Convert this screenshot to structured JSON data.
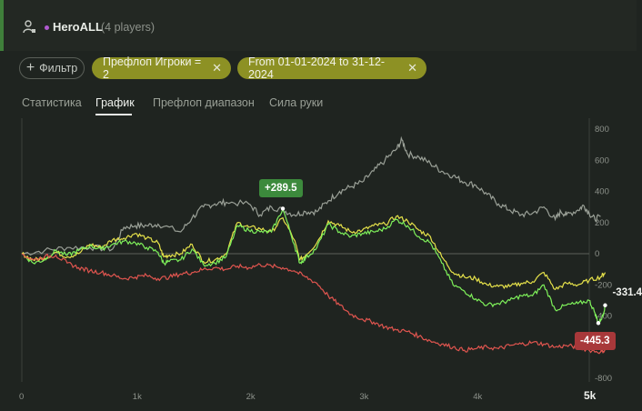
{
  "header": {
    "hero_name": "HeroALL",
    "players_text": "(4 players)"
  },
  "filters": {
    "add_filter_label": "Фильтр",
    "chips": [
      {
        "label": "Префлоп Игроки = 2"
      },
      {
        "label": "From 01-01-2024 to 31-12-2024"
      }
    ]
  },
  "tabs": [
    {
      "label": "Статистика"
    },
    {
      "label": "График"
    },
    {
      "label": "Префлоп диапазон"
    },
    {
      "label": "Сила руки"
    }
  ],
  "active_tab": "График",
  "colors": {
    "gray_series": "#9aa097",
    "yellow_series": "#e6e24a",
    "green_series": "#7ef05a",
    "red_series": "#e0554f",
    "positive_callout": "#3c8a3c",
    "negative_callout": "#a8383a",
    "chip_bg": "#8d9124"
  },
  "chart_data": {
    "type": "line",
    "x_ticks": [
      "0",
      "1k",
      "2k",
      "3k",
      "4k",
      "5k"
    ],
    "y_ticks": [
      "800",
      "600",
      "400",
      "200",
      "0",
      "-200",
      "-400",
      "-600",
      "-800"
    ],
    "xlim": [
      0,
      5000
    ],
    "ylim": [
      -800,
      800
    ],
    "grid": false,
    "series": [
      {
        "color": "#9aa097",
        "points": [
          [
            0,
            0
          ],
          [
            200,
            20
          ],
          [
            400,
            40
          ],
          [
            600,
            40
          ],
          [
            800,
            30
          ],
          [
            900,
            170
          ],
          [
            1000,
            180
          ],
          [
            1100,
            180
          ],
          [
            1200,
            190
          ],
          [
            1400,
            140
          ],
          [
            1500,
            230
          ],
          [
            1600,
            300
          ],
          [
            1700,
            320
          ],
          [
            1800,
            330
          ],
          [
            2000,
            320
          ],
          [
            2100,
            250
          ],
          [
            2200,
            300
          ],
          [
            2300,
            280
          ],
          [
            2400,
            250
          ],
          [
            2500,
            270
          ],
          [
            2600,
            270
          ],
          [
            2700,
            340
          ],
          [
            2800,
            400
          ],
          [
            2900,
            430
          ],
          [
            3000,
            460
          ],
          [
            3100,
            530
          ],
          [
            3200,
            600
          ],
          [
            3300,
            670
          ],
          [
            3350,
            730
          ],
          [
            3400,
            640
          ],
          [
            3500,
            620
          ],
          [
            3600,
            580
          ],
          [
            3700,
            530
          ],
          [
            3800,
            500
          ],
          [
            3900,
            460
          ],
          [
            4000,
            440
          ],
          [
            4100,
            380
          ],
          [
            4200,
            320
          ],
          [
            4300,
            280
          ],
          [
            4400,
            250
          ],
          [
            4500,
            260
          ],
          [
            4600,
            300
          ],
          [
            4700,
            220
          ],
          [
            4750,
            270
          ],
          [
            4800,
            250
          ],
          [
            4900,
            280
          ],
          [
            4950,
            310
          ],
          [
            5000,
            260
          ],
          [
            5050,
            220
          ],
          [
            5100,
            240
          ]
        ]
      },
      {
        "color": "#e6e24a",
        "points": [
          [
            0,
            0
          ],
          [
            100,
            -40
          ],
          [
            200,
            -30
          ],
          [
            300,
            10
          ],
          [
            400,
            -20
          ],
          [
            500,
            0
          ],
          [
            600,
            60
          ],
          [
            700,
            40
          ],
          [
            800,
            90
          ],
          [
            900,
            100
          ],
          [
            1000,
            130
          ],
          [
            1100,
            100
          ],
          [
            1200,
            70
          ],
          [
            1250,
            -20
          ],
          [
            1300,
            -10
          ],
          [
            1400,
            0
          ],
          [
            1500,
            60
          ],
          [
            1600,
            -50
          ],
          [
            1700,
            -40
          ],
          [
            1800,
            0
          ],
          [
            1900,
            200
          ],
          [
            2000,
            170
          ],
          [
            2100,
            160
          ],
          [
            2200,
            140
          ],
          [
            2300,
            230
          ],
          [
            2400,
            90
          ],
          [
            2450,
            -40
          ],
          [
            2500,
            -10
          ],
          [
            2600,
            70
          ],
          [
            2700,
            210
          ],
          [
            2800,
            180
          ],
          [
            2900,
            140
          ],
          [
            3000,
            150
          ],
          [
            3100,
            180
          ],
          [
            3200,
            190
          ],
          [
            3300,
            240
          ],
          [
            3400,
            210
          ],
          [
            3500,
            150
          ],
          [
            3600,
            110
          ],
          [
            3700,
            -20
          ],
          [
            3800,
            -120
          ],
          [
            3900,
            -150
          ],
          [
            4000,
            -160
          ],
          [
            4100,
            -200
          ],
          [
            4200,
            -210
          ],
          [
            4300,
            -210
          ],
          [
            4400,
            -190
          ],
          [
            4500,
            -180
          ],
          [
            4600,
            -120
          ],
          [
            4700,
            -230
          ],
          [
            4800,
            -190
          ],
          [
            4900,
            -200
          ],
          [
            5000,
            -170
          ],
          [
            5100,
            -150
          ],
          [
            5140,
            -120
          ]
        ]
      },
      {
        "color": "#7ef05a",
        "points": [
          [
            0,
            0
          ],
          [
            100,
            -60
          ],
          [
            200,
            -40
          ],
          [
            300,
            20
          ],
          [
            400,
            -10
          ],
          [
            500,
            20
          ],
          [
            600,
            50
          ],
          [
            700,
            30
          ],
          [
            800,
            60
          ],
          [
            900,
            80
          ],
          [
            1000,
            70
          ],
          [
            1100,
            40
          ],
          [
            1200,
            10
          ],
          [
            1250,
            -60
          ],
          [
            1300,
            -50
          ],
          [
            1400,
            -40
          ],
          [
            1500,
            30
          ],
          [
            1600,
            -70
          ],
          [
            1700,
            -60
          ],
          [
            1800,
            -20
          ],
          [
            1900,
            180
          ],
          [
            2000,
            150
          ],
          [
            2100,
            140
          ],
          [
            2200,
            140
          ],
          [
            2300,
            289.5
          ],
          [
            2400,
            60
          ],
          [
            2450,
            -60
          ],
          [
            2500,
            -30
          ],
          [
            2600,
            40
          ],
          [
            2700,
            190
          ],
          [
            2800,
            140
          ],
          [
            2900,
            110
          ],
          [
            3000,
            130
          ],
          [
            3100,
            140
          ],
          [
            3200,
            160
          ],
          [
            3300,
            220
          ],
          [
            3400,
            180
          ],
          [
            3500,
            110
          ],
          [
            3600,
            70
          ],
          [
            3700,
            -60
          ],
          [
            3800,
            -200
          ],
          [
            3900,
            -240
          ],
          [
            4000,
            -290
          ],
          [
            4100,
            -330
          ],
          [
            4200,
            -320
          ],
          [
            4300,
            -300
          ],
          [
            4400,
            -270
          ],
          [
            4500,
            -270
          ],
          [
            4600,
            -200
          ],
          [
            4700,
            -360
          ],
          [
            4800,
            -330
          ],
          [
            4900,
            -320
          ],
          [
            5000,
            -300
          ],
          [
            5050,
            -380
          ],
          [
            5080,
            -445.3
          ],
          [
            5120,
            -400
          ],
          [
            5140,
            -331.4
          ]
        ]
      },
      {
        "color": "#e0554f",
        "points": [
          [
            0,
            0
          ],
          [
            100,
            -40
          ],
          [
            200,
            -20
          ],
          [
            300,
            -10
          ],
          [
            400,
            -60
          ],
          [
            500,
            -90
          ],
          [
            600,
            -110
          ],
          [
            700,
            -120
          ],
          [
            800,
            -140
          ],
          [
            900,
            -160
          ],
          [
            1000,
            -150
          ],
          [
            1100,
            -140
          ],
          [
            1200,
            -160
          ],
          [
            1300,
            -150
          ],
          [
            1400,
            -130
          ],
          [
            1500,
            -120
          ],
          [
            1600,
            -100
          ],
          [
            1700,
            -90
          ],
          [
            1800,
            -100
          ],
          [
            1900,
            -80
          ],
          [
            2000,
            -90
          ],
          [
            2100,
            -70
          ],
          [
            2200,
            -80
          ],
          [
            2300,
            -90
          ],
          [
            2400,
            -110
          ],
          [
            2500,
            -150
          ],
          [
            2600,
            -190
          ],
          [
            2700,
            -270
          ],
          [
            2800,
            -330
          ],
          [
            2900,
            -390
          ],
          [
            3000,
            -420
          ],
          [
            3100,
            -440
          ],
          [
            3200,
            -470
          ],
          [
            3300,
            -490
          ],
          [
            3400,
            -500
          ],
          [
            3500,
            -530
          ],
          [
            3600,
            -560
          ],
          [
            3700,
            -580
          ],
          [
            3800,
            -600
          ],
          [
            3900,
            -620
          ],
          [
            4000,
            -610
          ],
          [
            4100,
            -600
          ],
          [
            4200,
            -610
          ],
          [
            4300,
            -590
          ],
          [
            4400,
            -580
          ],
          [
            4500,
            -570
          ],
          [
            4600,
            -580
          ],
          [
            4700,
            -600
          ],
          [
            4800,
            -590
          ],
          [
            4900,
            -600
          ],
          [
            5000,
            -620
          ],
          [
            5100,
            -630
          ],
          [
            5140,
            -620
          ]
        ]
      }
    ],
    "annotations": [
      {
        "label": "+289.5",
        "x": 2300,
        "y": 289.5,
        "color": "#3c8a3c"
      },
      {
        "label": "-445.3",
        "x": 5080,
        "y": -445.3,
        "color": "#a8383a"
      },
      {
        "label": "-331.4",
        "x": 5140,
        "y": -331.4
      }
    ]
  }
}
